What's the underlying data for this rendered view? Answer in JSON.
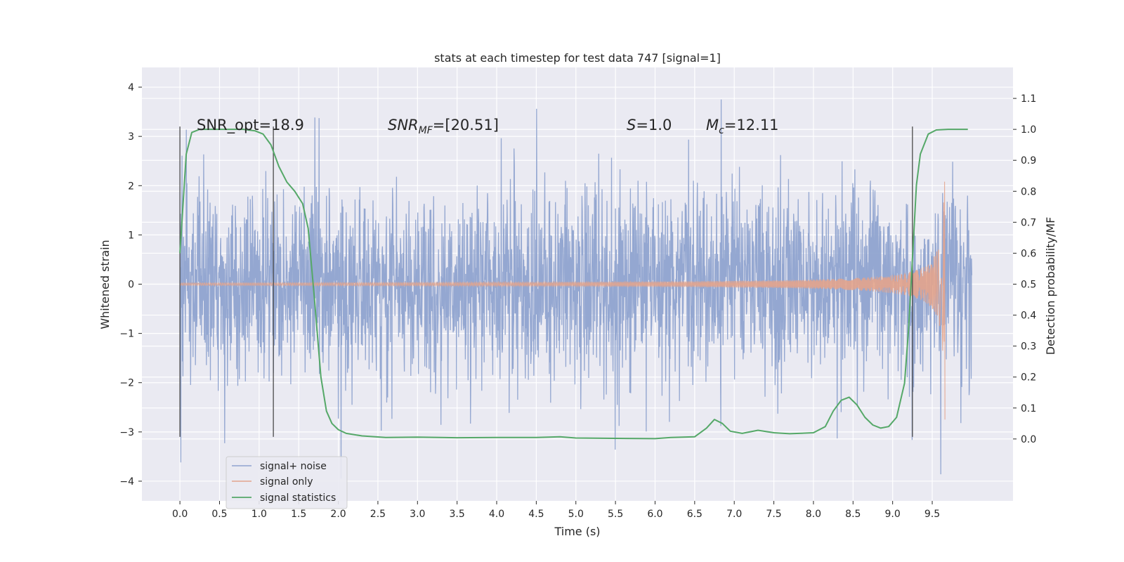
{
  "chart_data": {
    "type": "line",
    "title": "stats at each timestep for test data 747 [signal=1]",
    "xlabel": "Time (s)",
    "ylabel": "Whitened strain",
    "ylabel_right": "Detection probability/MF",
    "xlim": [
      -0.48,
      10.52
    ],
    "ylim": [
      -4.4,
      4.4
    ],
    "ylim_right": [
      -0.2,
      1.2
    ],
    "x_ticks": [
      0.0,
      0.5,
      1.0,
      1.5,
      2.0,
      2.5,
      3.0,
      3.5,
      4.0,
      4.5,
      5.0,
      5.5,
      6.0,
      6.5,
      7.0,
      7.5,
      8.0,
      8.5,
      9.0,
      9.5
    ],
    "x_tick_labels": [
      "0.0",
      "0.5",
      "1.0",
      "1.5",
      "2.0",
      "2.5",
      "3.0",
      "3.5",
      "4.0",
      "4.5",
      "5.0",
      "5.5",
      "6.0",
      "6.5",
      "7.0",
      "7.5",
      "8.0",
      "8.5",
      "9.0",
      "9.5"
    ],
    "y_ticks": [
      4,
      3,
      2,
      1,
      0,
      -1,
      -2,
      -3,
      -4
    ],
    "y_tick_labels": [
      "4",
      "3",
      "2",
      "1",
      "0",
      "−1",
      "−2",
      "−3",
      "−4"
    ],
    "y_right_ticks": [
      1.1,
      1.0,
      0.9,
      0.8,
      0.7,
      0.6,
      0.5,
      0.4,
      0.3,
      0.2,
      0.1,
      0.0
    ],
    "y_right_tick_labels": [
      "1.1",
      "1.0",
      "0.9",
      "0.8",
      "0.7",
      "0.6",
      "0.5",
      "0.4",
      "0.3",
      "0.2",
      "0.1",
      "0.0"
    ],
    "grid": true,
    "legend_position": "lower-left",
    "annotations": {
      "snr_opt": "SNR_opt=18.9",
      "snr_mf_base": "SNR",
      "snr_mf_sub": "MF",
      "snr_mf_value": "=[20.51]",
      "s_base": "S",
      "s_value": "=1.0",
      "mc_base": "M",
      "mc_sub": "c",
      "mc_value": "=12.11"
    },
    "vertical_lines": [
      {
        "x": 0.0,
        "y_range": [
          -3.1,
          3.2
        ]
      },
      {
        "x": 1.18,
        "y_range": [
          -3.1,
          3.2
        ]
      },
      {
        "x": 9.25,
        "y_range": [
          -3.1,
          3.2
        ]
      }
    ],
    "series": [
      {
        "name": "signal+ noise",
        "color": "#8fa3cf",
        "description_values": {
          "x_start": 0.0,
          "x_end": 10.0,
          "typical_abs": 1.2,
          "max": 4.05,
          "min": -3.95
        }
      },
      {
        "name": "signal only",
        "color": "#e3a48c",
        "description_values": {
          "x_start": 0.0,
          "x_end": 9.66,
          "peak_amplitude": 2.95
        }
      },
      {
        "name": "signal statistics",
        "color": "#55a868",
        "axis": "right",
        "x": [
          0.0,
          0.08,
          0.15,
          0.25,
          0.4,
          0.6,
          0.8,
          0.95,
          1.05,
          1.15,
          1.25,
          1.35,
          1.45,
          1.55,
          1.62,
          1.7,
          1.78,
          1.85,
          1.92,
          2.0,
          2.1,
          2.3,
          2.6,
          3.0,
          3.5,
          4.0,
          4.5,
          4.8,
          5.0,
          5.5,
          6.0,
          6.2,
          6.5,
          6.65,
          6.75,
          6.85,
          6.95,
          7.1,
          7.3,
          7.5,
          7.7,
          8.0,
          8.15,
          8.25,
          8.35,
          8.45,
          8.55,
          8.65,
          8.75,
          8.85,
          8.95,
          9.05,
          9.15,
          9.2,
          9.25,
          9.3,
          9.35,
          9.45,
          9.55,
          9.7,
          9.95
        ],
        "values": [
          0.6,
          0.92,
          0.99,
          1.0,
          1.0,
          1.0,
          1.0,
          0.995,
          0.985,
          0.95,
          0.88,
          0.83,
          0.8,
          0.76,
          0.68,
          0.45,
          0.2,
          0.09,
          0.05,
          0.03,
          0.018,
          0.01,
          0.005,
          0.006,
          0.004,
          0.005,
          0.005,
          0.007,
          0.003,
          0.002,
          0.001,
          0.005,
          0.007,
          0.035,
          0.063,
          0.05,
          0.025,
          0.018,
          0.028,
          0.02,
          0.017,
          0.02,
          0.04,
          0.09,
          0.125,
          0.135,
          0.11,
          0.07,
          0.045,
          0.035,
          0.04,
          0.07,
          0.18,
          0.35,
          0.58,
          0.82,
          0.92,
          0.985,
          0.998,
          1.0,
          1.0
        ]
      }
    ]
  }
}
